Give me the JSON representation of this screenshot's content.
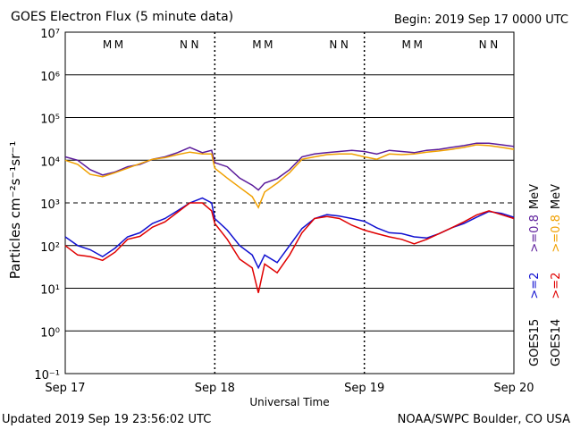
{
  "chart_data": {
    "type": "line",
    "title": "GOES Electron Flux (5 minute data)",
    "subtitle": "Begin: 2019 Sep 17 0000 UTC",
    "xlabel": "Universal Time",
    "ylabel": "Particles cm⁻²s⁻¹sr⁻¹",
    "footer_left": "Updated 2019 Sep 19 23:56:02 UTC",
    "footer_right": "NOAA/SWPC Boulder, CO USA",
    "log_y": true,
    "grid": true,
    "threshold": 1000,
    "xlim": [
      0,
      72
    ],
    "xticks": [
      {
        "value": 0,
        "label": "Sep 17"
      },
      {
        "value": 24,
        "label": "Sep 18"
      },
      {
        "value": 48,
        "label": "Sep 19"
      },
      {
        "value": 72,
        "label": "Sep 20"
      }
    ],
    "ylim": [
      0.1,
      10000000
    ],
    "yticks": [
      {
        "value": 0.1,
        "label": "10⁻¹"
      },
      {
        "value": 1,
        "label": "10⁰"
      },
      {
        "value": 10,
        "label": "10¹"
      },
      {
        "value": 100,
        "label": "10²"
      },
      {
        "value": 1000,
        "label": "10³"
      },
      {
        "value": 10000,
        "label": "10⁴"
      },
      {
        "value": 100000,
        "label": "10⁵"
      },
      {
        "value": 1000000,
        "label": "10⁶"
      },
      {
        "value": 10000000,
        "label": "10⁷"
      }
    ],
    "markers": [
      {
        "label": "M",
        "color": "#e00000",
        "x": 6.75
      },
      {
        "label": "M",
        "color": "#1010d0",
        "x": 8.6
      },
      {
        "label": "N",
        "color": "#e00000",
        "x": 19
      },
      {
        "label": "N",
        "color": "#1010d0",
        "x": 20.8
      },
      {
        "label": "M",
        "color": "#e00000",
        "x": 30.75
      },
      {
        "label": "M",
        "color": "#1010d0",
        "x": 32.6
      },
      {
        "label": "N",
        "color": "#e00000",
        "x": 43
      },
      {
        "label": "N",
        "color": "#1010d0",
        "x": 44.8
      },
      {
        "label": "M",
        "color": "#e00000",
        "x": 54.75
      },
      {
        "label": "M",
        "color": "#1010d0",
        "x": 56.6
      },
      {
        "label": "N",
        "color": "#e00000",
        "x": 67
      },
      {
        "label": "N",
        "color": "#1010d0",
        "x": 68.8
      }
    ],
    "legend": [
      {
        "satellite": "GOES15",
        "unit": "MeV"
      },
      {
        "satellite": "GOES14",
        "unit": "MeV"
      }
    ],
    "x": [
      0,
      2,
      4,
      6,
      8,
      10,
      12,
      14,
      16,
      18,
      20,
      22,
      23.5,
      24,
      26,
      28,
      30,
      31,
      32,
      34,
      36,
      38,
      40,
      42,
      44,
      46,
      48,
      50,
      52,
      54,
      56,
      58,
      60,
      62,
      64,
      66,
      68,
      70,
      72
    ],
    "series": [
      {
        "name": ">=2",
        "color": "#1010d0",
        "values": [
          160,
          100,
          80,
          55,
          87,
          160,
          200,
          330,
          430,
          650,
          1000,
          1300,
          1000,
          430,
          230,
          100,
          60,
          30,
          60,
          40,
          100,
          250,
          430,
          530,
          490,
          430,
          370,
          260,
          200,
          190,
          160,
          150,
          190,
          260,
          330,
          460,
          630,
          570,
          460
        ]
      },
      {
        "name": ">=0.8",
        "color": "#5a1a9a",
        "values": [
          12000,
          10000,
          6000,
          4500,
          5300,
          7000,
          8000,
          10500,
          12000,
          15000,
          20000,
          15000,
          17000,
          8800,
          7000,
          3800,
          2600,
          2000,
          2900,
          3700,
          6000,
          12000,
          14000,
          15000,
          16000,
          17000,
          16000,
          14000,
          17000,
          16000,
          15000,
          17000,
          18000,
          20000,
          22000,
          25000,
          25000,
          23000,
          21000
        ]
      },
      {
        "name": ">=2",
        "color": "#e00000",
        "values": [
          100,
          60,
          55,
          45,
          70,
          140,
          165,
          270,
          360,
          600,
          1000,
          1000,
          650,
          330,
          140,
          48,
          30,
          7.8,
          37,
          23,
          60,
          200,
          430,
          480,
          430,
          300,
          230,
          190,
          160,
          140,
          110,
          140,
          190,
          260,
          360,
          520,
          650,
          530,
          430
        ]
      },
      {
        "name": ">=0.8",
        "color": "#f0a000",
        "values": [
          10000,
          8000,
          4650,
          4100,
          5100,
          6500,
          8300,
          10500,
          11500,
          13500,
          15500,
          14000,
          14000,
          6500,
          3800,
          2300,
          1400,
          780,
          1800,
          2900,
          5100,
          10500,
          12000,
          13500,
          14000,
          14000,
          12000,
          10500,
          14000,
          13500,
          14000,
          15500,
          16500,
          18000,
          20000,
          23000,
          22000,
          20000,
          18000
        ]
      }
    ]
  }
}
